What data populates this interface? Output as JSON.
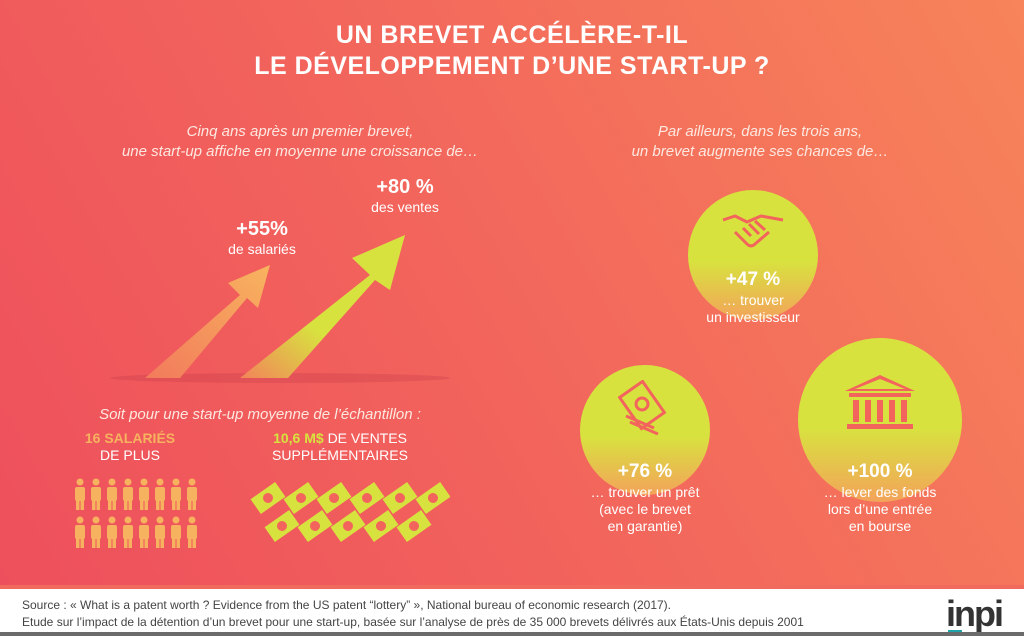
{
  "title": {
    "line1": "UN BREVET ACCÉLÈRE-T-IL",
    "line2": "LE DÉVELOPPEMENT D’UNE START-UP ?"
  },
  "left": {
    "intro1": "Cinq ans après un premier brevet,",
    "intro2": "une start-up affiche en moyenne une croissance de…",
    "stat1": {
      "value": "+55%",
      "label": "de salariés"
    },
    "stat2": {
      "value": "+80 %",
      "label": "des ventes"
    },
    "sample": "Soit pour une start-up moyenne de l’échantillon :",
    "employees": {
      "highlight": "16 SALARIÉS",
      "rest": "DE PLUS"
    },
    "sales": {
      "highlight": "10,6 M$",
      "rest1": "DE VENTES",
      "rest2": "SUPPLÉMENTAIRES"
    }
  },
  "right": {
    "intro1": "Par ailleurs, dans les trois ans,",
    "intro2": "un brevet augmente ses chances de…",
    "investor": {
      "value": "+47 %",
      "l1": "… trouver",
      "l2": "un investisseur"
    },
    "loan": {
      "value": "+76 %",
      "l1": "… trouver un prêt",
      "l2": "(avec le brevet",
      "l3": "en garantie)"
    },
    "ipo": {
      "value": "+100 %",
      "l1": "… lever des fonds",
      "l2": "lors d’une entrée",
      "l3": "en bourse"
    }
  },
  "footer": {
    "source": "Source : « What is a patent worth ? Evidence from the US patent “lottery” », National bureau of economic research (2017).",
    "study": "Etude sur l’impact de la détention d’un brevet pour une start-up, basée sur l’analyse de près de 35 000 brevets délivrés aux États-Unis depuis 2001",
    "logo": "inpi"
  },
  "colors": {
    "background": "#f2645c",
    "lime": "#d8e23f",
    "orange": "#f6b25e"
  }
}
